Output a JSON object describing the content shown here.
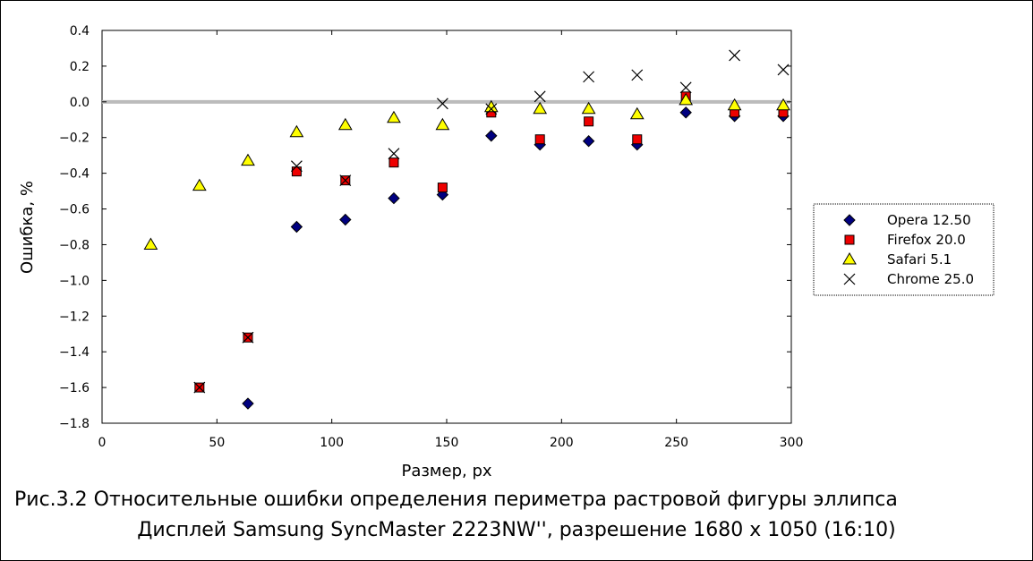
{
  "chart_data": {
    "type": "scatter",
    "xlabel": "Размер, px",
    "ylabel": "Ошибка, %",
    "xlim": [
      0,
      300
    ],
    "ylim": [
      -1.8,
      0.4
    ],
    "x_ticks": [
      "0",
      "50",
      "100",
      "150",
      "200",
      "250",
      "300"
    ],
    "x_tick_values": [
      0,
      50,
      100,
      150,
      200,
      250,
      300
    ],
    "y_ticks": [
      "0.4",
      "0.2",
      "0.0",
      "−0.2",
      "−0.4",
      "−0.6",
      "−0.8",
      "−1.0",
      "−1.2",
      "−1.4",
      "−1.6",
      "−1.8"
    ],
    "y_tick_values": [
      0.4,
      0.2,
      0.0,
      -0.2,
      -0.4,
      -0.6,
      -0.8,
      -1.0,
      -1.2,
      -1.4,
      -1.6,
      -1.8
    ],
    "reference_line_y": 0.0,
    "legend_position": "right",
    "series": [
      {
        "name": "Opera 12.50",
        "marker": "diamond",
        "color": "#000080",
        "points": [
          [
            63.5,
            -1.69
          ],
          [
            84.7,
            -0.7
          ],
          [
            105.9,
            -0.66
          ],
          [
            127.0,
            -0.54
          ],
          [
            148.2,
            -0.52
          ],
          [
            169.4,
            -0.19
          ],
          [
            190.6,
            -0.24
          ],
          [
            211.8,
            -0.22
          ],
          [
            232.9,
            -0.24
          ],
          [
            254.1,
            -0.06
          ],
          [
            275.3,
            -0.08
          ],
          [
            296.5,
            -0.08
          ]
        ]
      },
      {
        "name": "Firefox 20.0",
        "marker": "square",
        "color": "#ee0000",
        "points": [
          [
            42.4,
            -1.6
          ],
          [
            63.5,
            -1.32
          ],
          [
            84.7,
            -0.39
          ],
          [
            105.9,
            -0.44
          ],
          [
            127.0,
            -0.34
          ],
          [
            148.2,
            -0.48
          ],
          [
            169.4,
            -0.06
          ],
          [
            190.6,
            -0.21
          ],
          [
            211.8,
            -0.11
          ],
          [
            232.9,
            -0.21
          ],
          [
            254.1,
            0.03
          ],
          [
            275.3,
            -0.06
          ],
          [
            296.5,
            -0.06
          ]
        ]
      },
      {
        "name": "Safari 5.1",
        "marker": "triangle",
        "color": "#ffff00",
        "points": [
          [
            21.2,
            -0.8
          ],
          [
            42.4,
            -0.47
          ],
          [
            63.5,
            -0.33
          ],
          [
            84.7,
            -0.17
          ],
          [
            105.9,
            -0.13
          ],
          [
            127.0,
            -0.09
          ],
          [
            148.2,
            -0.13
          ],
          [
            169.4,
            -0.03
          ],
          [
            190.6,
            -0.04
          ],
          [
            211.8,
            -0.04
          ],
          [
            232.9,
            -0.07
          ],
          [
            254.1,
            0.01
          ],
          [
            275.3,
            -0.02
          ],
          [
            296.5,
            -0.02
          ]
        ]
      },
      {
        "name": "Chrome 25.0",
        "marker": "x",
        "color": "#000000",
        "points": [
          [
            42.4,
            -1.6
          ],
          [
            63.5,
            -1.32
          ],
          [
            84.7,
            -0.36
          ],
          [
            105.9,
            -0.44
          ],
          [
            127.0,
            -0.29
          ],
          [
            148.2,
            -0.01
          ],
          [
            169.4,
            -0.04
          ],
          [
            190.6,
            0.03
          ],
          [
            211.8,
            0.14
          ],
          [
            232.9,
            0.15
          ],
          [
            254.1,
            0.08
          ],
          [
            275.3,
            0.26
          ],
          [
            296.5,
            0.18
          ]
        ]
      }
    ]
  },
  "caption": {
    "line1": "Рис.3.2 Относительные ошибки определения периметра растровой фигуры эллипса",
    "line2": "Дисплей Samsung SyncMaster 2223NW'', разрешение 1680 х 1050 (16:10)"
  }
}
